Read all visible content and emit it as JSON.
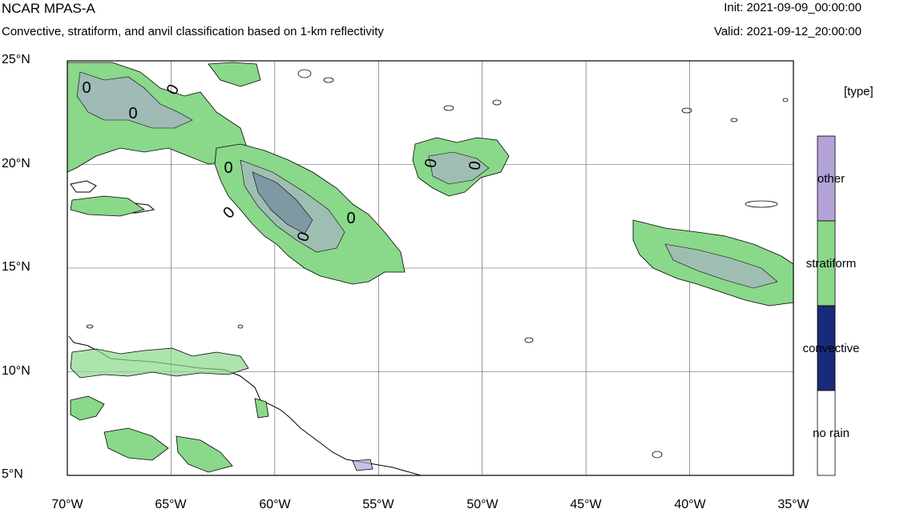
{
  "header": {
    "title": "NCAR MPAS-A",
    "subtitle": "Convective, stratiform, and anvil classification based on 1-km reflectivity",
    "init": "Init: 2021-09-09_00:00:00",
    "valid": "Valid: 2021-09-12_20:00:00"
  },
  "axes": {
    "y_ticks": [
      "25°N",
      "20°N",
      "15°N",
      "10°N",
      "5°N"
    ],
    "x_ticks": [
      "70°W",
      "65°W",
      "60°W",
      "55°W",
      "50°W",
      "45°W",
      "40°W",
      "35°W"
    ],
    "lat_range": [
      5,
      25
    ],
    "lon_range": [
      -70,
      -35
    ],
    "grid": true
  },
  "contour_labels": [
    "0",
    "0",
    "0",
    "0",
    "0",
    "0",
    "0",
    "0",
    "0"
  ],
  "legend": {
    "title": "[type]",
    "items": [
      {
        "label": "other",
        "color": "#b3a3d9"
      },
      {
        "label": "stratiform",
        "color": "#8ad88a"
      },
      {
        "label": "convective",
        "color": "#1a2a7a"
      },
      {
        "label": "no rain",
        "color": "#ffffff"
      }
    ]
  }
}
